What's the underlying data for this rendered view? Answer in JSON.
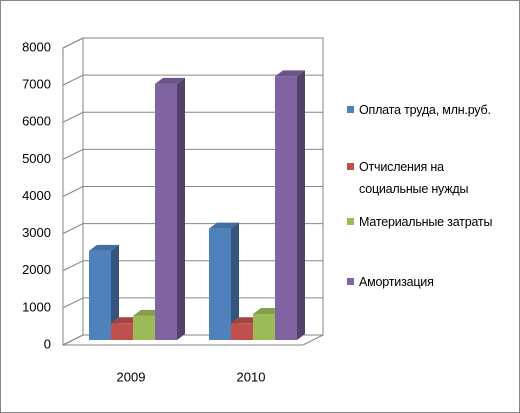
{
  "chart_data": {
    "type": "bar3d",
    "categories": [
      "2009",
      "2010"
    ],
    "series": [
      {
        "name": "Оплата труда, млн.руб.",
        "color": "#4f81bd",
        "values": [
          2400,
          3000
        ]
      },
      {
        "name": "Отчисления на социальные нужды",
        "color": "#c0504d",
        "values": [
          450,
          450
        ]
      },
      {
        "name": "Материальные затраты",
        "color": "#9bbb59",
        "values": [
          650,
          700
        ]
      },
      {
        "name": "Амортизация",
        "color": "#8064a2",
        "values": [
          6900,
          7100
        ]
      }
    ],
    "ylim": [
      0,
      8000
    ],
    "yticks": [
      0,
      1000,
      2000,
      3000,
      4000,
      5000,
      6000,
      7000,
      8000
    ],
    "grid": true,
    "legend": "right"
  }
}
